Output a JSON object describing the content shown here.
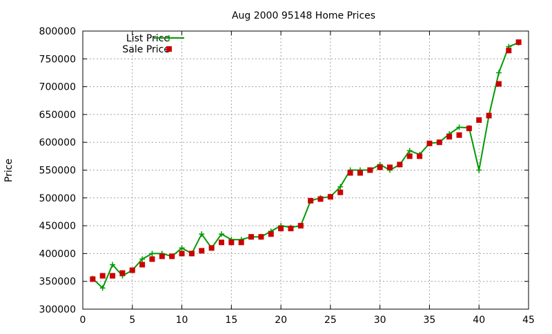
{
  "chart_data": {
    "type": "line",
    "title": "Aug 2000 95148 Home Prices",
    "xlabel": "",
    "ylabel": "Price",
    "xlim": [
      0,
      45
    ],
    "ylim": [
      300000,
      800000
    ],
    "x_ticks": [
      0,
      5,
      10,
      15,
      20,
      25,
      30,
      35,
      40,
      45
    ],
    "y_ticks": [
      300000,
      350000,
      400000,
      450000,
      500000,
      550000,
      600000,
      650000,
      700000,
      750000,
      800000
    ],
    "grid": true,
    "legend_position": "top-left",
    "series": [
      {
        "name": "List Price",
        "style": "line-cross",
        "color": "#009900",
        "x": [
          1,
          2,
          3,
          4,
          5,
          6,
          7,
          8,
          9,
          10,
          11,
          12,
          13,
          14,
          15,
          16,
          17,
          18,
          19,
          20,
          21,
          22,
          23,
          24,
          25,
          26,
          27,
          28,
          29,
          30,
          31,
          32,
          33,
          34,
          35,
          36,
          37,
          38,
          39,
          40,
          41,
          42,
          43,
          44
        ],
        "y": [
          355000,
          338000,
          380000,
          360000,
          370000,
          390000,
          400000,
          400000,
          395000,
          410000,
          400000,
          435000,
          410000,
          435000,
          425000,
          425000,
          430000,
          430000,
          440000,
          450000,
          447000,
          450000,
          495000,
          500000,
          502000,
          520000,
          550000,
          550000,
          550000,
          560000,
          550000,
          560000,
          585000,
          578000,
          598000,
          600000,
          615000,
          627000,
          626000,
          550000,
          648000,
          725000,
          772000,
          779000
        ]
      },
      {
        "name": "Sale Price",
        "style": "square",
        "color": "#cc0000",
        "x": [
          1,
          2,
          3,
          4,
          5,
          6,
          7,
          8,
          9,
          10,
          11,
          12,
          13,
          14,
          15,
          16,
          17,
          18,
          19,
          20,
          21,
          22,
          23,
          24,
          25,
          26,
          27,
          28,
          29,
          30,
          31,
          32,
          33,
          34,
          35,
          36,
          37,
          38,
          39,
          40,
          41,
          42,
          43,
          44
        ],
        "y": [
          354000,
          360000,
          360000,
          365000,
          370000,
          380000,
          390000,
          395000,
          395000,
          400000,
          400000,
          405000,
          410000,
          420000,
          420000,
          420000,
          430000,
          430000,
          435000,
          445000,
          445000,
          450000,
          495000,
          498000,
          502000,
          510000,
          545000,
          545000,
          550000,
          555000,
          555000,
          560000,
          575000,
          575000,
          598000,
          600000,
          610000,
          613000,
          625000,
          640000,
          648000,
          705000,
          765000,
          780000
        ]
      }
    ]
  }
}
